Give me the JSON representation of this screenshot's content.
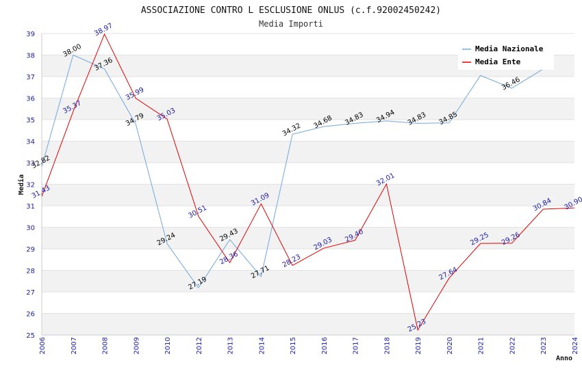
{
  "chart_data": {
    "type": "line",
    "title": "ASSOCIAZIONE CONTRO L ESCLUSIONE ONLUS (c.f.92002450242)",
    "subtitle": "Media Importi",
    "xlabel": "Anno",
    "ylabel": "Media",
    "ylim": [
      25,
      39
    ],
    "yticks": [
      "25",
      "26",
      "27",
      "28",
      "29",
      "30",
      "31",
      "32",
      "33",
      "34",
      "35",
      "36",
      "37",
      "38",
      "39"
    ],
    "categories": [
      "2006",
      "2007",
      "2008",
      "2009",
      "2010",
      "2012",
      "2013",
      "2014",
      "2015",
      "2016",
      "2017",
      "2018",
      "2019",
      "2020",
      "2021",
      "2022",
      "2023",
      "2024"
    ],
    "grid": true,
    "legend_position": "top-right",
    "series": [
      {
        "name": "Media Nazionale",
        "color": "#6fa8dc",
        "values": [
          32.82,
          38.0,
          37.36,
          34.79,
          29.24,
          27.19,
          29.43,
          27.71,
          34.32,
          34.68,
          34.83,
          34.94,
          34.83,
          34.85,
          37.05,
          36.46,
          37.35,
          null
        ],
        "labels": [
          "32.82",
          "38.00",
          "37.36",
          "34.79",
          "29.24",
          "27.19",
          "29.43",
          "27.71",
          "34.32",
          "34.68",
          "34.83",
          "34.94",
          "34.83",
          "34.85",
          "",
          "36.46",
          "",
          ""
        ]
      },
      {
        "name": "Media Ente",
        "color": "#e00000",
        "values": [
          31.43,
          35.37,
          38.97,
          35.99,
          35.03,
          30.51,
          28.36,
          31.09,
          28.23,
          29.03,
          29.4,
          32.01,
          25.23,
          27.64,
          29.25,
          29.26,
          30.84,
          30.9
        ],
        "labels": [
          "31.43",
          "35.37",
          "38.97",
          "35.99",
          "35.03",
          "30.51",
          "28.36",
          "31.09",
          "28.23",
          "29.03",
          "29.40",
          "32.01",
          "25.23",
          "27.64",
          "29.25",
          "29.26",
          "30.84",
          "30.90"
        ]
      }
    ]
  }
}
